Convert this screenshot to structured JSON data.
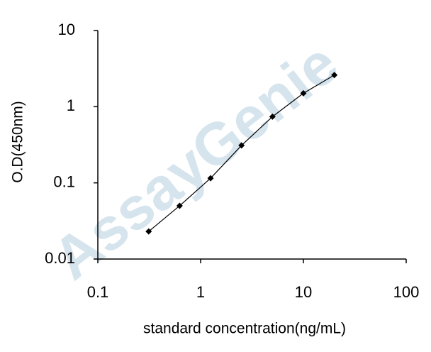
{
  "chart_data": {
    "type": "line",
    "x_label": "standard concentration(ng/mL)",
    "y_label": "O.D(450nm)",
    "watermark": "AssayGenie",
    "x": [
      0.3125,
      0.625,
      1.25,
      2.5,
      5,
      10,
      20
    ],
    "series": [
      {
        "color": "#000000",
        "values": [
          0.023,
          0.05,
          0.115,
          0.31,
          0.74,
          1.5,
          2.6
        ]
      }
    ],
    "xlim": [
      0.1,
      100
    ],
    "xticks": [
      0.1,
      1,
      10,
      100
    ],
    "ylim": [
      0.01,
      10
    ],
    "yticks": [
      0.01,
      0.1,
      1,
      10
    ],
    "log_x": true,
    "log_y": true
  }
}
